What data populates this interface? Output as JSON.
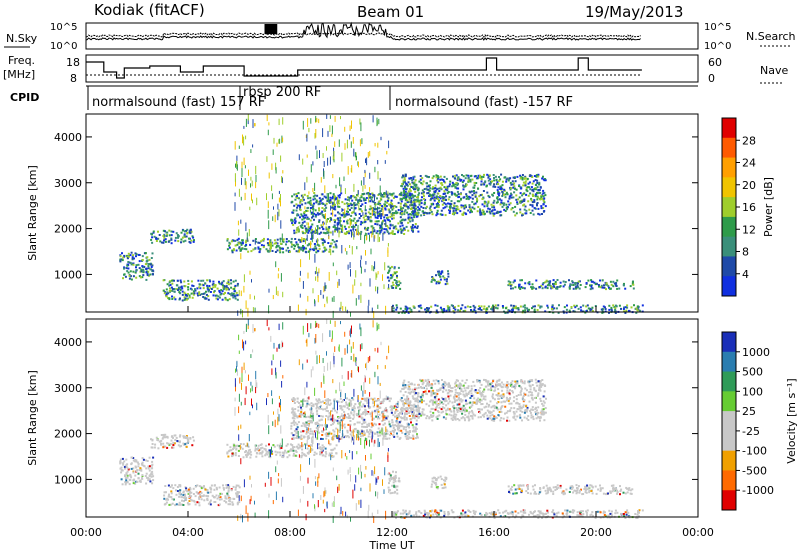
{
  "header": {
    "station": "Kodiak (fitACF)",
    "beam": "Beam 01",
    "date": "19/May/2013"
  },
  "panels": {
    "nsky": {
      "label": "N.Sky",
      "ticks_left": [
        "10^5",
        "10^0"
      ],
      "ticks_right": [
        "10^5",
        "10^0"
      ],
      "right_label": "N.Search"
    },
    "freq": {
      "label_top": "Freq.",
      "label_bottom": "[MHz]",
      "ticks_left": [
        "18",
        "8"
      ],
      "ticks_right": [
        "60",
        "0"
      ],
      "right_label": "Nave"
    },
    "cpid": {
      "label": "CPID",
      "segments": [
        "normalsound (fast) 157 RF",
        "rbsp 200 RF",
        "normalsound (fast) -157 RF"
      ]
    }
  },
  "colorbars": {
    "power": {
      "title": "Power [dB]",
      "ticks": [
        "28",
        "24",
        "20",
        "16",
        "12",
        "8",
        "4"
      ],
      "colors": [
        "#e00000",
        "#ff5a00",
        "#ff9f00",
        "#f0c400",
        "#9fce2c",
        "#2e9b4a",
        "#3a8f7a",
        "#1f4aa8",
        "#1030e0"
      ]
    },
    "velocity": {
      "title": "Velocity [m s⁻¹]",
      "ticks": [
        "1000",
        "500",
        "100",
        "25",
        "-25",
        "-100",
        "-500",
        "-1000"
      ],
      "colors": [
        "#1a2fb8",
        "#2a7db0",
        "#2f9b58",
        "#66cc33",
        "#c8c8c8",
        "#c8c8c8",
        "#f0a000",
        "#ff6a00",
        "#e00000"
      ]
    }
  },
  "chart_data": {
    "type": "heatmap",
    "x_axis": {
      "label": "Time UT",
      "ticks": [
        "00:00",
        "04:00",
        "08:00",
        "12:00",
        "16:00",
        "20:00",
        "00:00"
      ],
      "range_hours": [
        0,
        24
      ]
    },
    "y_axis": {
      "label": "Slant Range [km]",
      "ticks": [
        "1000",
        "2000",
        "3000",
        "4000"
      ],
      "range_km": [
        180,
        4500
      ]
    },
    "echo_bands": [
      {
        "t_start": 1.3,
        "t_end": 2.6,
        "range_start": 900,
        "range_end": 1500
      },
      {
        "t_start": 2.5,
        "t_end": 4.2,
        "range_start": 1700,
        "range_end": 2000
      },
      {
        "t_start": 3.0,
        "t_end": 6.0,
        "range_start": 450,
        "range_end": 900
      },
      {
        "t_start": 5.5,
        "t_end": 9.8,
        "range_start": 1500,
        "range_end": 1800
      },
      {
        "t_start": 8.0,
        "t_end": 13.0,
        "range_start": 1900,
        "range_end": 2800
      },
      {
        "t_start": 11.8,
        "t_end": 12.3,
        "range_start": 700,
        "range_end": 1200
      },
      {
        "t_start": 12.3,
        "t_end": 18.0,
        "range_start": 2300,
        "range_end": 3200
      },
      {
        "t_start": 13.5,
        "t_end": 14.2,
        "range_start": 800,
        "range_end": 1100
      },
      {
        "t_start": 16.5,
        "t_end": 17.5,
        "range_start": 700,
        "range_end": 900
      },
      {
        "t_start": 17.5,
        "t_end": 21.5,
        "range_start": 700,
        "range_end": 900
      },
      {
        "t_start": 12.0,
        "t_end": 21.8,
        "range_start": 180,
        "range_end": 350
      }
    ],
    "noise_bands": [
      {
        "t_start": 5.8,
        "t_end": 6.7
      },
      {
        "t_start": 7.0,
        "t_end": 7.7
      },
      {
        "t_start": 8.3,
        "t_end": 11.9
      }
    ]
  }
}
